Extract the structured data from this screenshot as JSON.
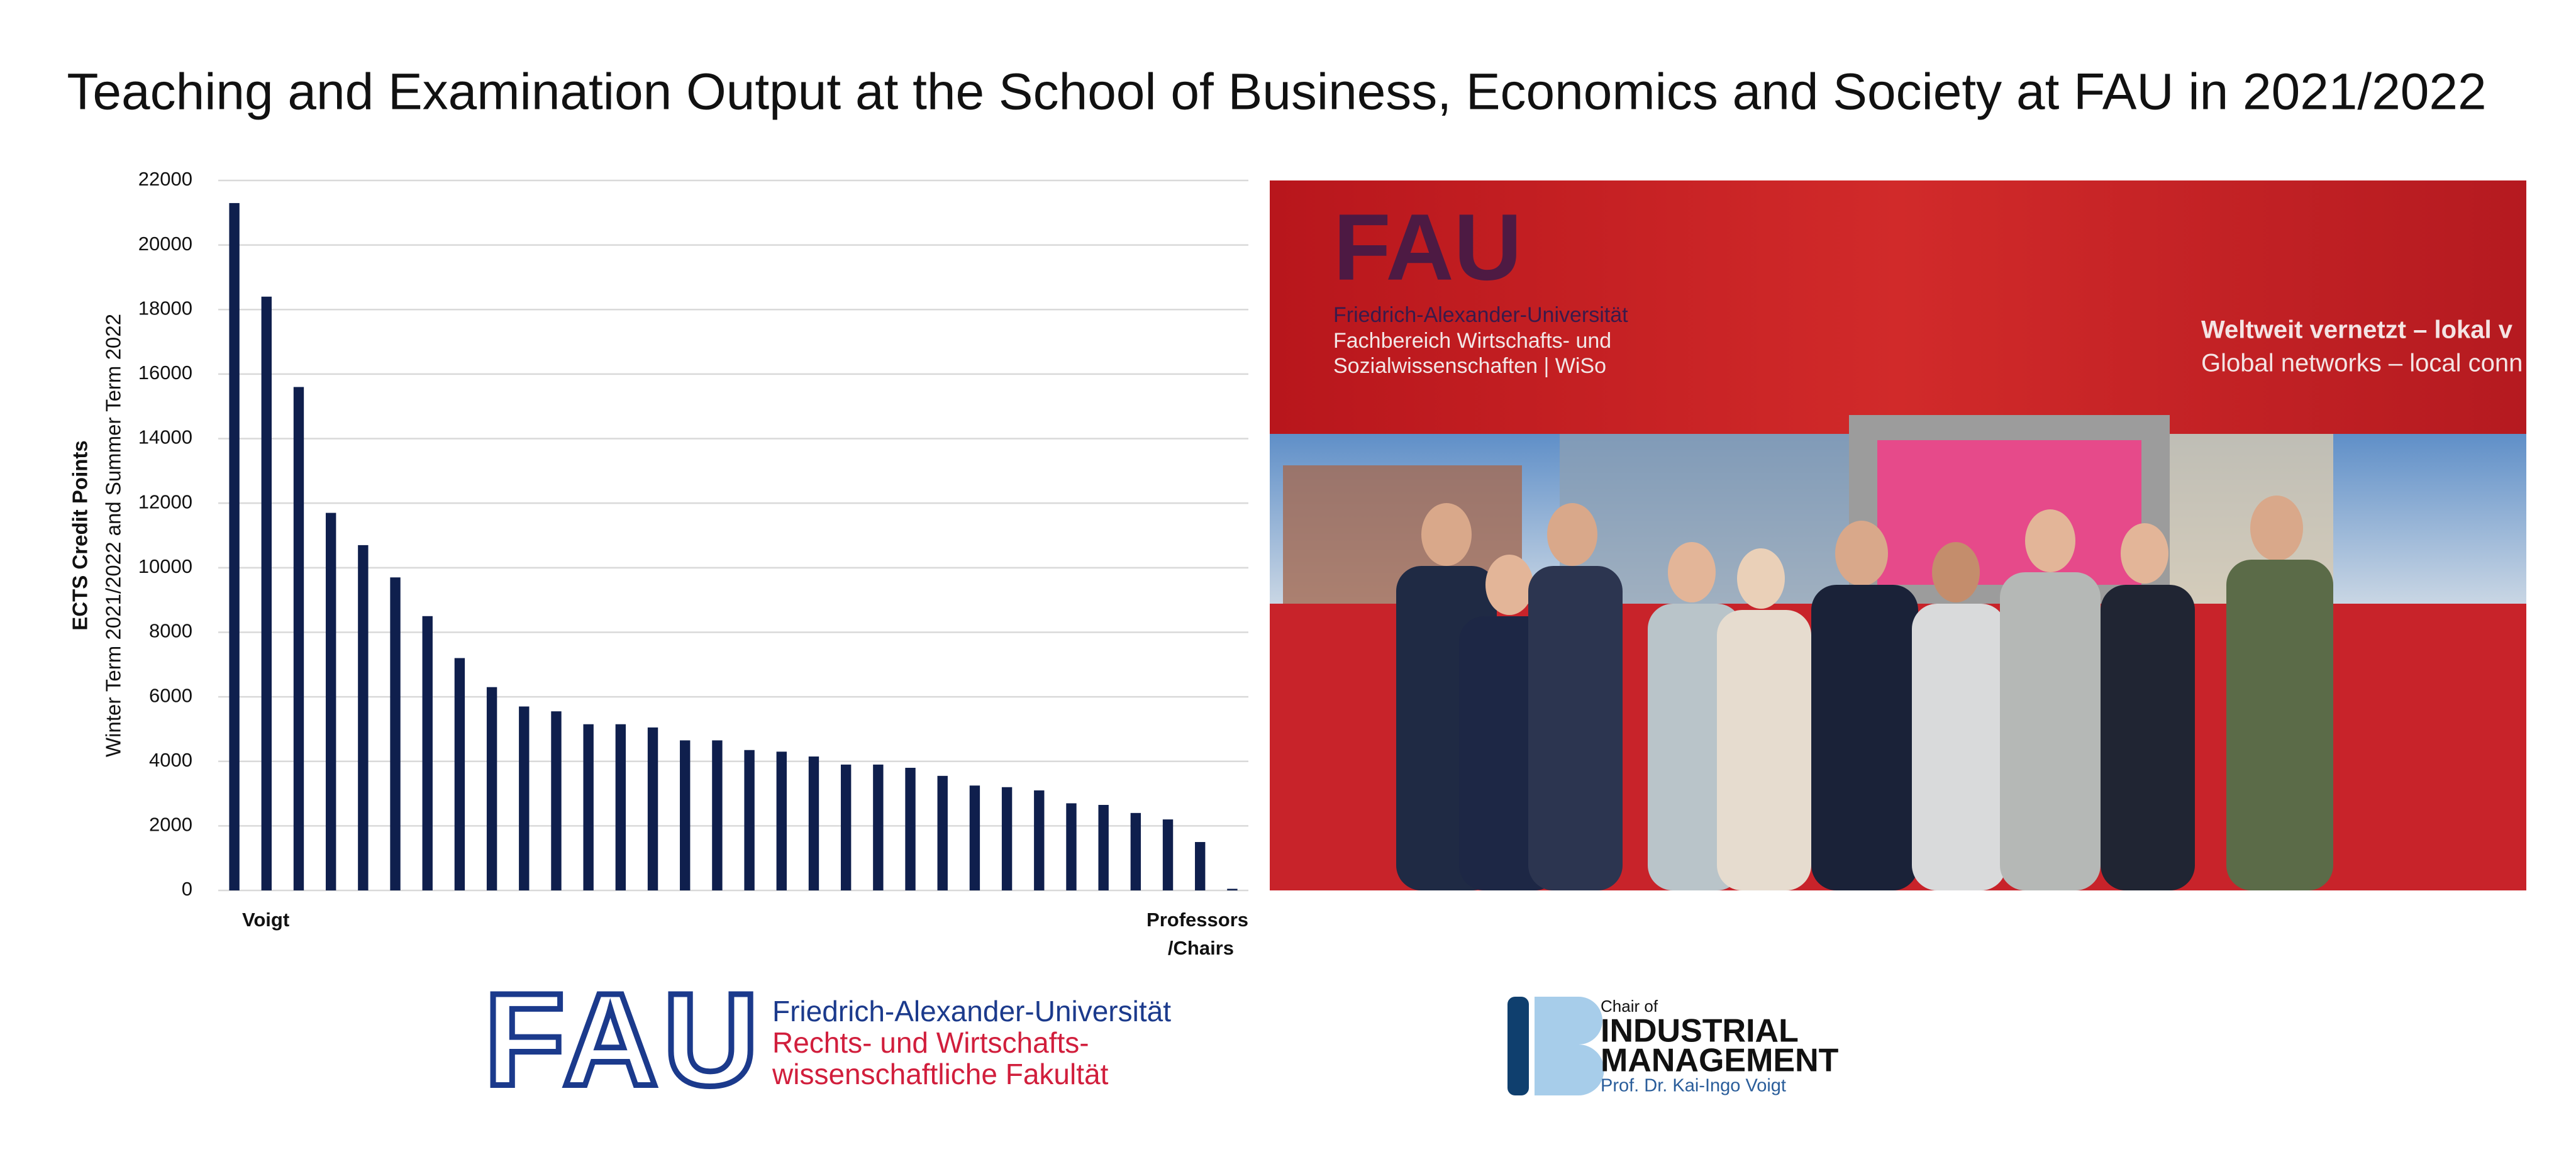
{
  "title": "Teaching and Examination Output at the School of Business, Economics and Society at FAU in 2021/2022",
  "chart_data": {
    "type": "bar",
    "ylabel": [
      "ECTS Credit Points",
      "Winter Term 2021/2022 and Summer Term 2022"
    ],
    "xlabel": [
      "Professors",
      "/Chairs"
    ],
    "categories": [
      "Voigt",
      null,
      null,
      null,
      null,
      null,
      null,
      null,
      null,
      null,
      null,
      null,
      null,
      null,
      null,
      null,
      null,
      null,
      null,
      null,
      null,
      null,
      null,
      null,
      null,
      null,
      null,
      null,
      null,
      null,
      null,
      null
    ],
    "values": [
      21300,
      18400,
      15600,
      11700,
      10700,
      9700,
      8500,
      7200,
      6300,
      5700,
      5550,
      5150,
      5150,
      5050,
      4650,
      4650,
      4350,
      4300,
      4150,
      3900,
      3900,
      3800,
      3550,
      3250,
      3200,
      3100,
      2700,
      2650,
      2400,
      2200,
      1500,
      50
    ],
    "color": "#0f1f4d",
    "ylim": [
      0,
      22000
    ],
    "yticks": [
      0,
      2000,
      4000,
      6000,
      8000,
      10000,
      12000,
      14000,
      16000,
      18000,
      20000,
      22000
    ],
    "grid": true
  },
  "photo": {
    "logo": "FAU",
    "lines": [
      "Friedrich-Alexander-Universität",
      "Fachbereich Wirtschafts- und",
      "Sozialwissenschaften | WiSo"
    ],
    "slogan": [
      "Weltweit vernetzt – lokal v",
      "Global networks – local conn"
    ]
  },
  "fau_logo": {
    "mark": "FAU",
    "lines": [
      "Friedrich-Alexander-Universität",
      "Rechts- und Wirtschafts-",
      "wissenschaftliche Fakultät"
    ]
  },
  "chair_logo": {
    "lines": [
      "Chair of",
      "INDUSTRIAL",
      "MANAGEMENT",
      "Prof. Dr. Kai-Ingo Voigt"
    ]
  }
}
